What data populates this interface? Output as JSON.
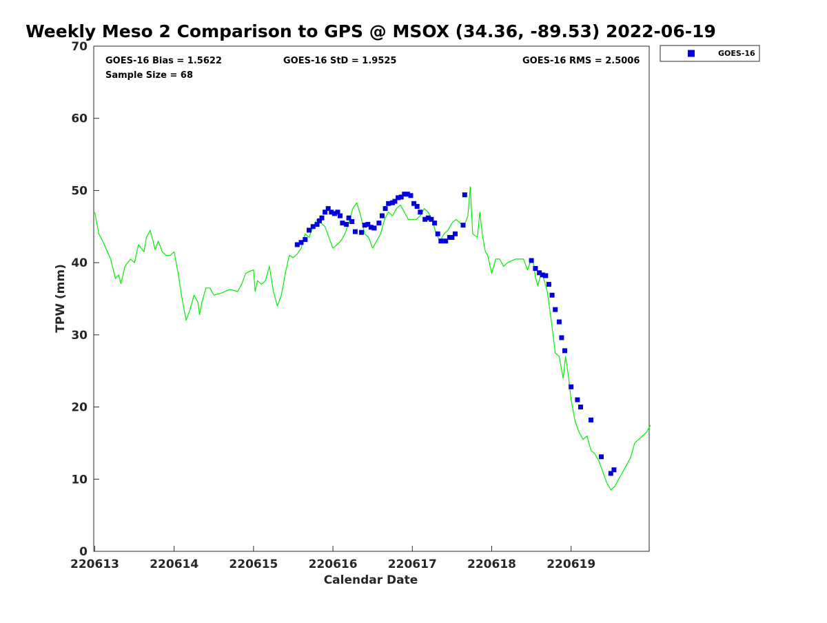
{
  "chart_data": {
    "type": "line",
    "title": "Weekly Meso 2 Comparison to GPS @ MSOX (34.36, -89.53) 2022-06-19",
    "xlabel": "Calendar Date",
    "ylabel": "TPW (mm)",
    "xlim": [
      0,
      7
    ],
    "ylim": [
      0,
      70
    ],
    "x_units": "days since 220613 00Z",
    "x_ticks": [
      0,
      1,
      2,
      3,
      4,
      5,
      6
    ],
    "x_tick_labels": [
      "220613",
      "220614",
      "220615",
      "220616",
      "220617",
      "220618",
      "220619"
    ],
    "y_ticks": [
      0,
      10,
      20,
      30,
      40,
      50,
      60,
      70
    ],
    "y_tick_labels": [
      "0",
      "10",
      "20",
      "30",
      "40",
      "50",
      "60",
      "70"
    ],
    "stats": {
      "bias": "GOES-16 Bias = 1.5622",
      "std": "GOES-16 StD = 1.9525",
      "rms": "GOES-16 RMS = 2.5006",
      "sample": "Sample Size = 68"
    },
    "legend": {
      "label": "GOES-16",
      "position": "top-right outside"
    },
    "series": [
      {
        "name": "GPS",
        "kind": "line",
        "color": "#00ee00",
        "points": [
          [
            0.0,
            47.0
          ],
          [
            0.05,
            44.0
          ],
          [
            0.1,
            43.0
          ],
          [
            0.2,
            40.5
          ],
          [
            0.26,
            37.8
          ],
          [
            0.3,
            38.3
          ],
          [
            0.33,
            37.1
          ],
          [
            0.38,
            39.5
          ],
          [
            0.45,
            40.5
          ],
          [
            0.5,
            40.0
          ],
          [
            0.55,
            42.5
          ],
          [
            0.62,
            41.5
          ],
          [
            0.65,
            43.5
          ],
          [
            0.7,
            44.5
          ],
          [
            0.76,
            41.8
          ],
          [
            0.8,
            43.0
          ],
          [
            0.85,
            41.5
          ],
          [
            0.9,
            41.0
          ],
          [
            0.95,
            41.0
          ],
          [
            1.0,
            41.5
          ],
          [
            1.05,
            38.5
          ],
          [
            1.1,
            35.0
          ],
          [
            1.15,
            32.0
          ],
          [
            1.2,
            33.5
          ],
          [
            1.25,
            35.5
          ],
          [
            1.3,
            34.5
          ],
          [
            1.32,
            32.8
          ],
          [
            1.35,
            34.5
          ],
          [
            1.4,
            36.5
          ],
          [
            1.45,
            36.5
          ],
          [
            1.5,
            35.5
          ],
          [
            1.6,
            35.8
          ],
          [
            1.7,
            36.3
          ],
          [
            1.8,
            36.0
          ],
          [
            1.85,
            37.0
          ],
          [
            1.9,
            38.5
          ],
          [
            1.95,
            38.8
          ],
          [
            2.0,
            39.0
          ],
          [
            2.02,
            36.0
          ],
          [
            2.05,
            37.5
          ],
          [
            2.1,
            37.0
          ],
          [
            2.15,
            37.5
          ],
          [
            2.2,
            39.5
          ],
          [
            2.25,
            36.0
          ],
          [
            2.3,
            34.0
          ],
          [
            2.35,
            35.5
          ],
          [
            2.4,
            38.5
          ],
          [
            2.45,
            41.0
          ],
          [
            2.5,
            40.7
          ],
          [
            2.55,
            41.2
          ],
          [
            2.6,
            42.0
          ],
          [
            2.65,
            44.0
          ],
          [
            2.7,
            43.5
          ],
          [
            2.75,
            45.0
          ],
          [
            2.8,
            46.0
          ],
          [
            2.85,
            45.5
          ],
          [
            2.9,
            45.0
          ],
          [
            2.95,
            43.5
          ],
          [
            3.0,
            42.0
          ],
          [
            3.05,
            42.5
          ],
          [
            3.1,
            43.0
          ],
          [
            3.15,
            44.0
          ],
          [
            3.2,
            45.5
          ],
          [
            3.25,
            47.5
          ],
          [
            3.3,
            48.3
          ],
          [
            3.35,
            46.5
          ],
          [
            3.4,
            44.0
          ],
          [
            3.45,
            43.5
          ],
          [
            3.5,
            42.0
          ],
          [
            3.55,
            43.0
          ],
          [
            3.6,
            44.0
          ],
          [
            3.65,
            46.0
          ],
          [
            3.7,
            47.0
          ],
          [
            3.75,
            46.5
          ],
          [
            3.8,
            47.5
          ],
          [
            3.85,
            48.0
          ],
          [
            3.9,
            47.0
          ],
          [
            3.95,
            46.0
          ],
          [
            4.0,
            46.0
          ],
          [
            4.05,
            46.0
          ],
          [
            4.1,
            46.5
          ],
          [
            4.15,
            47.5
          ],
          [
            4.2,
            47.0
          ],
          [
            4.25,
            46.0
          ],
          [
            4.3,
            44.0
          ],
          [
            4.35,
            43.0
          ],
          [
            4.4,
            44.0
          ],
          [
            4.45,
            44.5
          ],
          [
            4.5,
            45.5
          ],
          [
            4.55,
            46.0
          ],
          [
            4.6,
            45.5
          ],
          [
            4.65,
            45.0
          ],
          [
            4.7,
            46.5
          ],
          [
            4.73,
            50.5
          ],
          [
            4.76,
            44.0
          ],
          [
            4.82,
            43.5
          ],
          [
            4.85,
            47.0
          ],
          [
            4.88,
            44.0
          ],
          [
            4.92,
            41.5
          ],
          [
            4.95,
            41.0
          ],
          [
            5.0,
            38.5
          ],
          [
            5.05,
            40.5
          ],
          [
            5.1,
            40.5
          ],
          [
            5.15,
            39.5
          ],
          [
            5.2,
            40.0
          ],
          [
            5.3,
            40.5
          ],
          [
            5.4,
            40.5
          ],
          [
            5.45,
            39.0
          ],
          [
            5.5,
            40.5
          ],
          [
            5.52,
            40.3
          ],
          [
            5.55,
            38.0
          ],
          [
            5.58,
            36.8
          ],
          [
            5.62,
            38.5
          ],
          [
            5.65,
            38.0
          ],
          [
            5.7,
            36.0
          ],
          [
            5.75,
            32.0
          ],
          [
            5.8,
            27.5
          ],
          [
            5.85,
            27.0
          ],
          [
            5.9,
            24.0
          ],
          [
            5.93,
            27.0
          ],
          [
            5.97,
            24.0
          ],
          [
            6.0,
            21.0
          ],
          [
            6.05,
            18.0
          ],
          [
            6.1,
            16.5
          ],
          [
            6.15,
            15.5
          ],
          [
            6.2,
            16.0
          ],
          [
            6.25,
            14.0
          ],
          [
            6.3,
            13.5
          ],
          [
            6.35,
            12.5
          ],
          [
            6.4,
            11.0
          ],
          [
            6.45,
            9.5
          ],
          [
            6.5,
            8.5
          ],
          [
            6.55,
            9.0
          ],
          [
            6.6,
            10.0
          ],
          [
            6.65,
            11.0
          ],
          [
            6.7,
            12.0
          ],
          [
            6.75,
            13.0
          ],
          [
            6.8,
            15.0
          ],
          [
            6.85,
            15.5
          ],
          [
            6.9,
            16.0
          ],
          [
            6.95,
            16.5
          ],
          [
            7.0,
            17.5
          ]
        ]
      },
      {
        "name": "GOES-16",
        "kind": "scatter",
        "color": "#0000dd",
        "marker": "square",
        "points": [
          [
            2.55,
            42.5
          ],
          [
            2.6,
            42.8
          ],
          [
            2.65,
            43.2
          ],
          [
            2.7,
            44.5
          ],
          [
            2.75,
            45.0
          ],
          [
            2.8,
            45.3
          ],
          [
            2.83,
            45.8
          ],
          [
            2.86,
            46.2
          ],
          [
            2.9,
            47.0
          ],
          [
            2.94,
            47.5
          ],
          [
            2.98,
            47.0
          ],
          [
            3.02,
            46.8
          ],
          [
            3.06,
            47.0
          ],
          [
            3.09,
            46.5
          ],
          [
            3.12,
            45.5
          ],
          [
            3.17,
            45.3
          ],
          [
            3.2,
            46.2
          ],
          [
            3.24,
            45.7
          ],
          [
            3.28,
            44.3
          ],
          [
            3.36,
            44.2
          ],
          [
            3.4,
            45.2
          ],
          [
            3.44,
            45.3
          ],
          [
            3.48,
            44.9
          ],
          [
            3.52,
            44.8
          ],
          [
            3.58,
            45.5
          ],
          [
            3.62,
            46.5
          ],
          [
            3.66,
            47.5
          ],
          [
            3.7,
            48.2
          ],
          [
            3.75,
            48.3
          ],
          [
            3.78,
            48.5
          ],
          [
            3.82,
            49.0
          ],
          [
            3.86,
            49.1
          ],
          [
            3.9,
            49.5
          ],
          [
            3.94,
            49.5
          ],
          [
            3.98,
            49.3
          ],
          [
            4.02,
            48.2
          ],
          [
            4.06,
            47.8
          ],
          [
            4.1,
            47.0
          ],
          [
            4.16,
            46.0
          ],
          [
            4.2,
            46.2
          ],
          [
            4.24,
            46.0
          ],
          [
            4.28,
            45.5
          ],
          [
            4.32,
            44.0
          ],
          [
            4.36,
            43.0
          ],
          [
            4.42,
            43.0
          ],
          [
            4.47,
            43.5
          ],
          [
            4.5,
            43.5
          ],
          [
            4.54,
            44.0
          ],
          [
            4.64,
            45.2
          ],
          [
            4.66,
            49.4
          ],
          [
            5.5,
            40.3
          ],
          [
            5.55,
            39.2
          ],
          [
            5.6,
            38.6
          ],
          [
            5.64,
            38.3
          ],
          [
            5.68,
            38.2
          ],
          [
            5.72,
            37.0
          ],
          [
            5.76,
            35.5
          ],
          [
            5.8,
            33.5
          ],
          [
            5.85,
            31.8
          ],
          [
            5.88,
            29.6
          ],
          [
            5.92,
            27.8
          ],
          [
            6.0,
            22.8
          ],
          [
            6.08,
            21.0
          ],
          [
            6.12,
            20.0
          ],
          [
            6.25,
            18.2
          ],
          [
            6.38,
            13.1
          ],
          [
            6.5,
            10.8
          ],
          [
            6.54,
            11.3
          ]
        ]
      }
    ]
  }
}
